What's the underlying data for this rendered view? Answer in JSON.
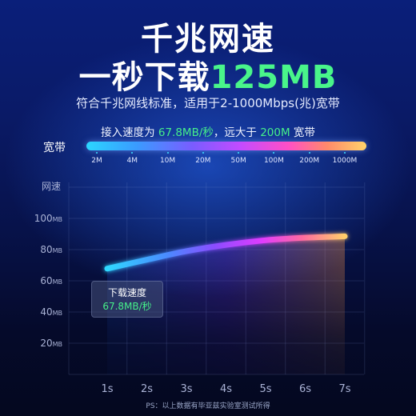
{
  "headline": {
    "line1": "千兆网速",
    "line2_prefix": "一秒下载",
    "line2_highlight": "125MB"
  },
  "subtitle": "符合千兆网线标准，适用于2-1000Mbps(兆)宽带",
  "speed_line": {
    "prefix": "接入速度为 ",
    "value": "67.8MB/秒",
    "middle": "，远大于 ",
    "compare": "200M",
    "suffix": " 宽带"
  },
  "bandwidth": {
    "label": "宽带",
    "ticks": [
      "2M",
      "4M",
      "10M",
      "20M",
      "50M",
      "100M",
      "200M",
      "1000M"
    ]
  },
  "chart_data": {
    "type": "line",
    "title": "",
    "ylabel": "网速",
    "xlabel": "",
    "x": [
      "1s",
      "2s",
      "3s",
      "4s",
      "5s",
      "6s",
      "7s"
    ],
    "y_ticks": [
      {
        "value": 20,
        "label": "20",
        "unit": "MB"
      },
      {
        "value": 40,
        "label": "40",
        "unit": "MB"
      },
      {
        "value": 60,
        "label": "60",
        "unit": "MB"
      },
      {
        "value": 80,
        "label": "80",
        "unit": "MB"
      },
      {
        "value": 100,
        "label": "100",
        "unit": "MB"
      }
    ],
    "ylim": [
      0,
      120
    ],
    "series": [
      {
        "values": [
          67.8,
          73.5,
          79.0,
          83.0,
          86.0,
          87.6,
          88.5
        ]
      }
    ],
    "grid": true,
    "annotation": {
      "label": "下载速度",
      "value": "67.8MB/秒"
    }
  },
  "footnote": "PS：以上数据有毕亚兹实验室测试所得",
  "colors": {
    "highlight_green": "#46f08a",
    "background": "#0a1a66"
  }
}
